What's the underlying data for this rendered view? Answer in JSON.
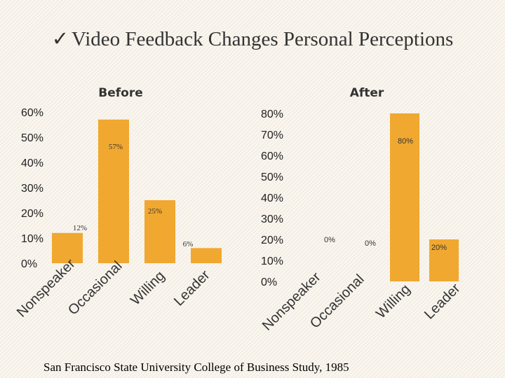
{
  "slide": {
    "check": "✓",
    "title": "Video Feedback Changes Personal Perceptions",
    "footer": "San Francisco State University College of Business Study, 1985"
  },
  "colors": {
    "bar": "#f0a830"
  },
  "chart_data": [
    {
      "type": "bar",
      "title": "Before",
      "categories": [
        "Nonspeaker",
        "Occasional",
        "Willing",
        "Leader"
      ],
      "values": [
        12,
        57,
        25,
        6
      ],
      "data_labels": [
        "12%",
        "57%",
        "25%",
        "6%"
      ],
      "yticks": [
        "0%",
        "10%",
        "20%",
        "30%",
        "40%",
        "50%",
        "60%"
      ],
      "ylim": [
        0,
        60
      ],
      "grid": false,
      "legend": "none"
    },
    {
      "type": "bar",
      "title": "After",
      "categories": [
        "Nonspeaker",
        "Occasional",
        "Willing",
        "Leader"
      ],
      "values": [
        0,
        0,
        80,
        20
      ],
      "data_labels": [
        "0%",
        "0%",
        "80%",
        "20%"
      ],
      "yticks": [
        "0%",
        "10%",
        "20%",
        "30%",
        "40%",
        "50%",
        "60%",
        "70%",
        "80%"
      ],
      "ylim": [
        0,
        80
      ],
      "grid": false,
      "legend": "none"
    }
  ]
}
